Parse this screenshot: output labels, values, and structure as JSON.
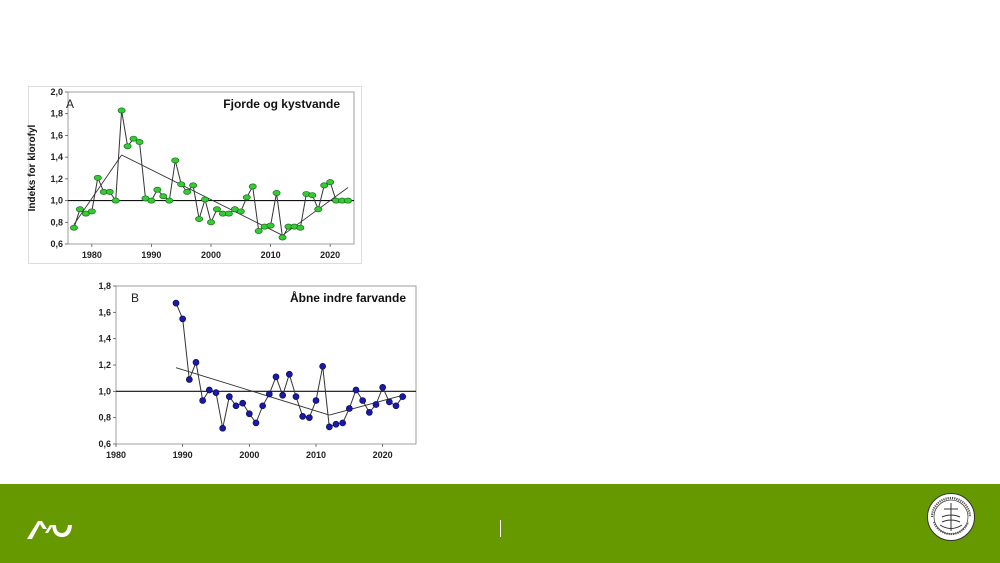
{
  "colors": {
    "footer": "#669900",
    "seriesA": "#33cc33",
    "seriesB": "#1a1aaa",
    "line": "#333333"
  },
  "footer": {
    "logo_icon": "au-logo-icon",
    "seal_icon": "university-seal-icon"
  },
  "chart_data": [
    {
      "type": "line",
      "panel": "A",
      "title": "Fjorde og kystvande",
      "ylabel": "Indeks for klorofyl",
      "xlim": [
        1976,
        2024
      ],
      "ylim": [
        0.6,
        2.0
      ],
      "xticks": [
        1980,
        1990,
        2000,
        2010,
        2020
      ],
      "yticks": [
        "0,6",
        "0,8",
        "1,0",
        "1,2",
        "1,4",
        "1,6",
        "1,8",
        "2,0"
      ],
      "reference_line": 1.0,
      "series": [
        {
          "x": [
            1977,
            1978,
            1979,
            1980,
            1981,
            1982,
            1983,
            1984,
            1985,
            1986,
            1987,
            1988,
            1989,
            1990,
            1991,
            1992,
            1993,
            1994,
            1995,
            1996,
            1997,
            1998,
            1999,
            2000,
            2001,
            2002,
            2003,
            2004,
            2005,
            2006,
            2007,
            2008,
            2009,
            2010,
            2011,
            2012,
            2013,
            2014,
            2015,
            2016,
            2017,
            2018,
            2019,
            2020,
            2021,
            2022,
            2023
          ],
          "values": [
            0.75,
            0.92,
            0.88,
            0.9,
            1.21,
            1.08,
            1.08,
            1.0,
            1.83,
            1.5,
            1.57,
            1.54,
            1.02,
            1.0,
            1.1,
            1.04,
            1.0,
            1.37,
            1.15,
            1.08,
            1.14,
            0.83,
            1.01,
            0.8,
            0.92,
            0.88,
            0.88,
            0.92,
            0.9,
            1.03,
            1.13,
            0.72,
            0.76,
            0.77,
            1.07,
            0.66,
            0.76,
            0.76,
            0.75,
            1.06,
            1.05,
            0.92,
            1.14,
            1.17,
            1.0,
            1.0,
            1.0
          ]
        }
      ],
      "trend_lines": [
        {
          "x": [
            1977,
            1985
          ],
          "y": [
            0.78,
            1.42
          ]
        },
        {
          "x": [
            1985,
            2012
          ],
          "y": [
            1.42,
            0.68
          ]
        },
        {
          "x": [
            2012,
            2023
          ],
          "y": [
            0.68,
            1.12
          ]
        }
      ]
    },
    {
      "type": "line",
      "panel": "B",
      "title": "Åbne indre farvande",
      "xlim": [
        1980,
        2025
      ],
      "ylim": [
        0.6,
        1.8
      ],
      "xticks": [
        1980,
        1990,
        2000,
        2010,
        2020
      ],
      "yticks": [
        "0,6",
        "0,8",
        "1,0",
        "1,2",
        "1,4",
        "1,6",
        "1,8"
      ],
      "reference_line": 1.0,
      "series": [
        {
          "x": [
            1989,
            1990,
            1991,
            1992,
            1993,
            1994,
            1995,
            1996,
            1997,
            1998,
            1999,
            2000,
            2001,
            2002,
            2003,
            2004,
            2005,
            2006,
            2007,
            2008,
            2009,
            2010,
            2011,
            2012,
            2013,
            2014,
            2015,
            2016,
            2017,
            2018,
            2019,
            2020,
            2021,
            2022,
            2023
          ],
          "values": [
            1.67,
            1.55,
            1.09,
            1.22,
            0.93,
            1.01,
            0.99,
            0.72,
            0.96,
            0.89,
            0.91,
            0.83,
            0.76,
            0.89,
            0.98,
            1.11,
            0.97,
            1.13,
            0.96,
            0.81,
            0.8,
            0.93,
            1.19,
            0.73,
            0.75,
            0.76,
            0.87,
            1.01,
            0.93,
            0.84,
            0.9,
            1.03,
            0.92,
            0.89,
            0.96
          ]
        }
      ],
      "trend_lines": [
        {
          "x": [
            1989,
            2012
          ],
          "y": [
            1.18,
            0.82
          ]
        },
        {
          "x": [
            2012,
            2023
          ],
          "y": [
            0.82,
            0.97
          ]
        }
      ]
    }
  ]
}
